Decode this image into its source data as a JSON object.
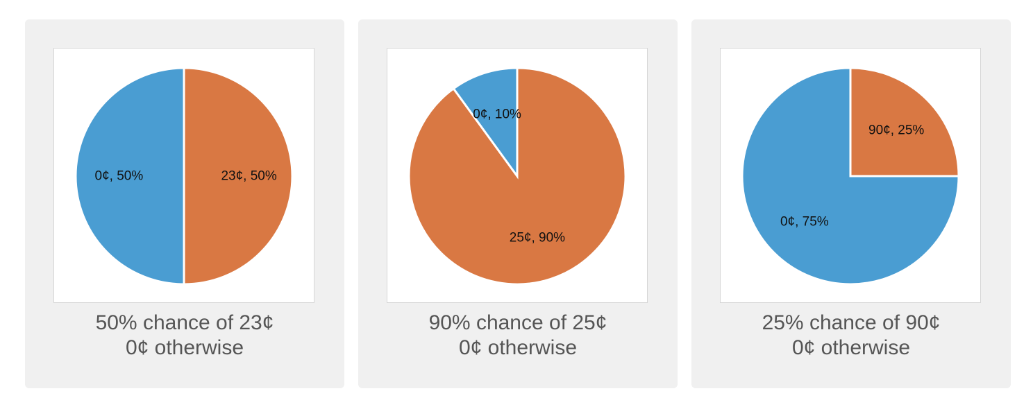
{
  "colors": {
    "blue": "#4a9dd2",
    "orange": "#d97843",
    "card_background": "#f0f0f0"
  },
  "cards": [
    {
      "caption_line1": "50% chance of 23¢",
      "caption_line2": "0¢ otherwise"
    },
    {
      "caption_line1": "90% chance of 25¢",
      "caption_line2": "0¢ otherwise"
    },
    {
      "caption_line1": "25% chance of 90¢",
      "caption_line2": "0¢ otherwise"
    }
  ],
  "chart_data": [
    {
      "type": "pie",
      "slices": [
        {
          "label": "23¢, 50%",
          "value": 50,
          "color": "#d97843"
        },
        {
          "label": "0¢, 50%",
          "value": 50,
          "color": "#4a9dd2"
        }
      ]
    },
    {
      "type": "pie",
      "slices": [
        {
          "label": "25¢, 90%",
          "value": 90,
          "color": "#d97843"
        },
        {
          "label": "0¢, 10%",
          "value": 10,
          "color": "#4a9dd2"
        }
      ]
    },
    {
      "type": "pie",
      "slices": [
        {
          "label": "90¢, 25%",
          "value": 25,
          "color": "#d97843"
        },
        {
          "label": "0¢, 75%",
          "value": 75,
          "color": "#4a9dd2"
        }
      ]
    }
  ]
}
